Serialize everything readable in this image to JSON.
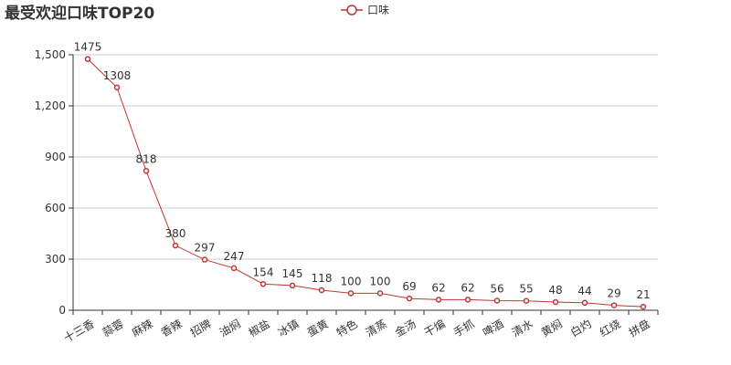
{
  "chart_data": {
    "type": "line",
    "title": "最受欢迎口味TOP20",
    "legend": {
      "position": "top-center",
      "entries": [
        "口味"
      ]
    },
    "series": [
      {
        "name": "口味",
        "color": "#c23531",
        "values": [
          1475,
          1308,
          818,
          380,
          297,
          247,
          154,
          145,
          118,
          100,
          100,
          69,
          62,
          62,
          56,
          55,
          48,
          44,
          29,
          21
        ]
      }
    ],
    "categories": [
      "十三香",
      "蒜蓉",
      "麻辣",
      "香辣",
      "招牌",
      "油焖",
      "椒盐",
      "冰镇",
      "蛋黄",
      "特色",
      "清蒸",
      "金汤",
      "干煸",
      "手抓",
      "啤酒",
      "清水",
      "黄焖",
      "白灼",
      "红烧",
      "拼盘"
    ],
    "ylim": [
      0,
      1500
    ],
    "y_ticks": [
      0,
      300,
      600,
      900,
      1200,
      1500
    ],
    "y_tick_labels": [
      "0",
      "300",
      "600",
      "900",
      "1,200",
      "1,500"
    ],
    "grid": true,
    "xlabel": "",
    "ylabel": ""
  }
}
